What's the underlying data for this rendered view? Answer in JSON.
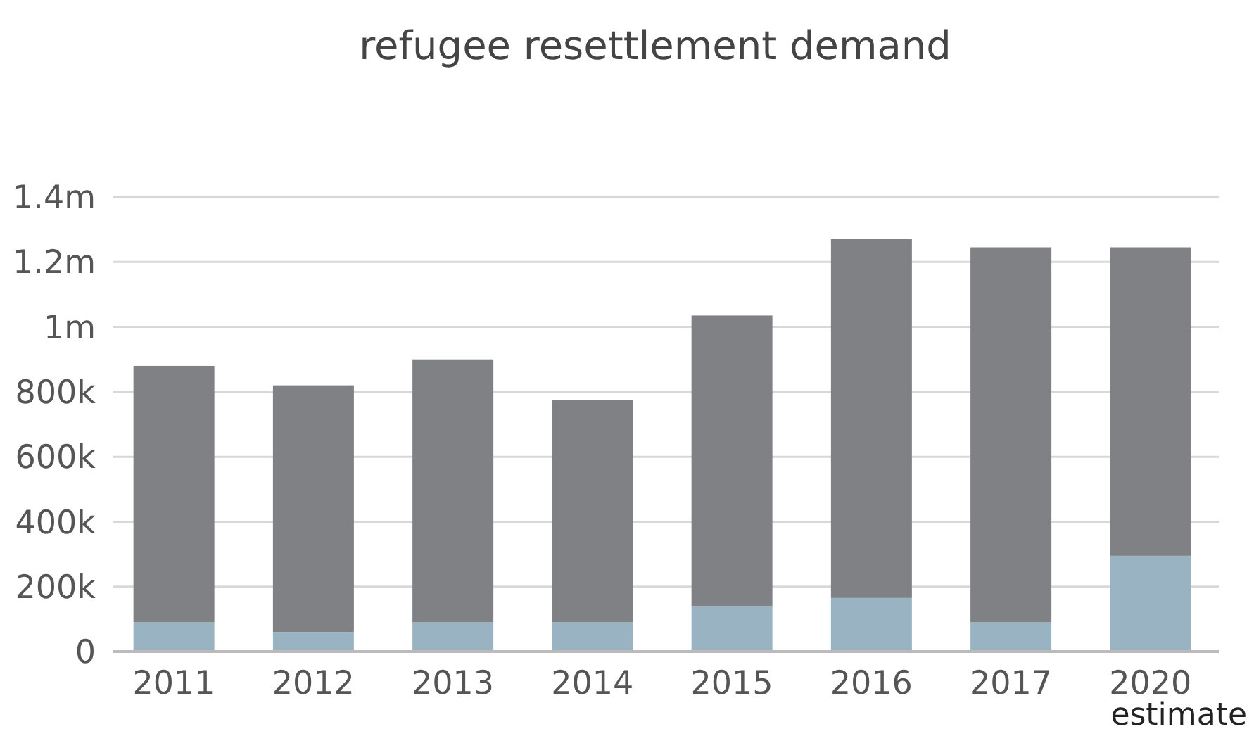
{
  "chart_data": {
    "type": "bar",
    "title": "refugee resettlement demand",
    "stacked": true,
    "grid": "y",
    "categories": [
      "2011",
      "2012",
      "2013",
      "2014",
      "2015",
      "2016",
      "2017",
      "2020"
    ],
    "series": [
      {
        "color": "#9ab3c2",
        "values": [
          90000,
          60000,
          90000,
          90000,
          140000,
          165000,
          90000,
          295000
        ]
      },
      {
        "color": "#808184",
        "values": [
          790000,
          760000,
          810000,
          685000,
          895000,
          1105000,
          1155000,
          950000
        ]
      }
    ],
    "ylim": [
      0,
      1400000
    ],
    "yticks": [
      0,
      {
        "value": 200000,
        "label": "200k"
      },
      {
        "value": 400000,
        "label": "400k"
      },
      {
        "value": 600000,
        "label": "600k"
      },
      {
        "value": 800000,
        "label": "800k"
      },
      {
        "value": 1000000,
        "label": "1m"
      },
      {
        "value": 1200000,
        "label": "1.2m"
      },
      {
        "value": 1400000,
        "label": "1.4m"
      }
    ],
    "annotations": [
      "estimate"
    ]
  }
}
